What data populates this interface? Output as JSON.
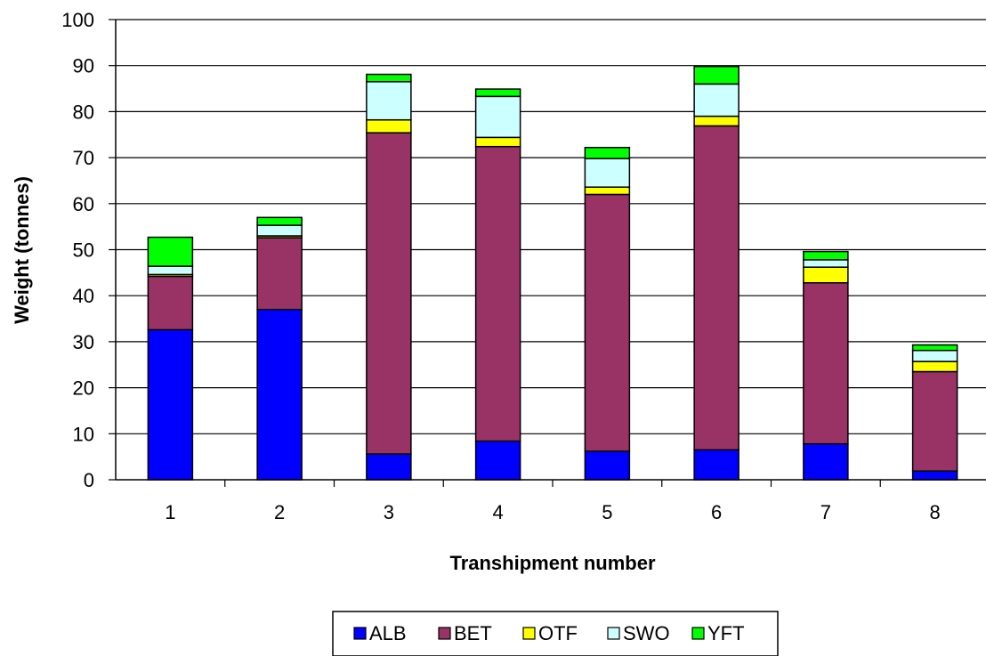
{
  "chart_data": {
    "type": "bar",
    "stacked": true,
    "title": "",
    "xlabel": "Transhipment number",
    "ylabel": "Weight (tonnes)",
    "ylim": [
      0,
      100
    ],
    "ytick_step": 10,
    "grid": "horizontal",
    "legend_position": "bottom",
    "categories": [
      "1",
      "2",
      "3",
      "4",
      "5",
      "6",
      "7",
      "8"
    ],
    "series": [
      {
        "name": "ALB",
        "color": "#0000FF",
        "values": [
          32.6,
          37.0,
          5.6,
          8.4,
          6.2,
          6.5,
          7.8,
          1.9
        ]
      },
      {
        "name": "BET",
        "color": "#993366",
        "values": [
          11.6,
          15.6,
          69.8,
          64.0,
          55.8,
          70.4,
          35.0,
          21.6
        ]
      },
      {
        "name": "OTF",
        "color": "#FFFF00",
        "values": [
          0.4,
          0.4,
          2.8,
          2.0,
          1.6,
          2.1,
          3.4,
          2.2
        ]
      },
      {
        "name": "SWO",
        "color": "#CCFFFF",
        "values": [
          1.8,
          2.3,
          8.3,
          8.9,
          6.2,
          7.0,
          1.6,
          2.4
        ]
      },
      {
        "name": "YFT",
        "color": "#00FF00",
        "values": [
          6.3,
          1.7,
          1.6,
          1.6,
          2.4,
          3.8,
          1.8,
          1.2
        ]
      }
    ]
  }
}
